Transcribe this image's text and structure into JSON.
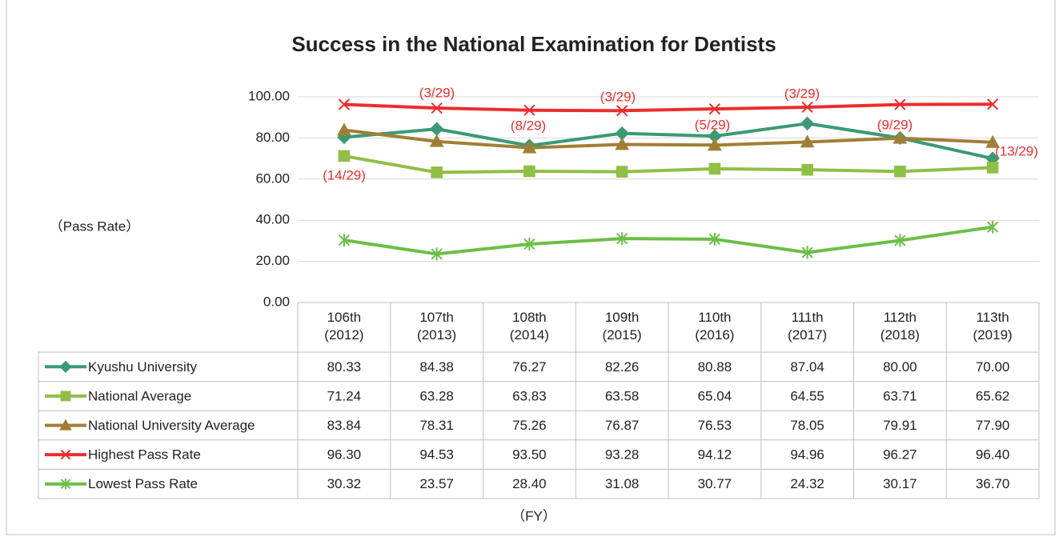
{
  "chart_data": {
    "type": "line",
    "title": "Success in the National Examination for Dentists",
    "y_label": "（Pass Rate）",
    "x_label": "（FY）",
    "categories": [
      "106th\n(2012)",
      "107th\n(2013)",
      "108th\n(2014)",
      "109th\n(2015)",
      "110th\n(2016)",
      "111th\n(2017)",
      "112th\n(2018)",
      "113th\n(2019)"
    ],
    "ylim": [
      0,
      100
    ],
    "yticks": [
      {
        "value": 0,
        "label": "0.00"
      },
      {
        "value": 20,
        "label": "20.00"
      },
      {
        "value": 40,
        "label": "40.00"
      },
      {
        "value": 60,
        "label": "60.00"
      },
      {
        "value": 80,
        "label": "80.00"
      },
      {
        "value": 100,
        "label": "100.00"
      }
    ],
    "grid": true,
    "annotations": [
      "(14/29)",
      "(3/29)",
      "(8/29)",
      "(3/29)",
      "(5/29)",
      "(3/29)",
      "(9/29)",
      "(13/29)"
    ],
    "annotation_color": "#ee2c2c",
    "series": [
      {
        "name": "Kyushu University",
        "color": "#3a9a73",
        "marker": "diamond",
        "values": [
          80.33,
          84.38,
          76.27,
          82.26,
          80.88,
          87.04,
          80.0,
          70.0
        ],
        "value_labels": [
          "80.33",
          "84.38",
          "76.27",
          "82.26",
          "80.88",
          "87.04",
          "80.00",
          "70.00"
        ]
      },
      {
        "name": "National Average",
        "color": "#8fbf45",
        "marker": "square",
        "values": [
          71.24,
          63.28,
          63.83,
          63.58,
          65.04,
          64.55,
          63.71,
          65.62
        ],
        "value_labels": [
          "71.24",
          "63.28",
          "63.83",
          "63.58",
          "65.04",
          "64.55",
          "63.71",
          "65.62"
        ]
      },
      {
        "name": "National University Average",
        "color": "#a07f35",
        "marker": "triangle",
        "values": [
          83.84,
          78.31,
          75.26,
          76.87,
          76.53,
          78.05,
          79.91,
          77.9
        ],
        "value_labels": [
          "83.84",
          "78.31",
          "75.26",
          "76.87",
          "76.53",
          "78.05",
          "79.91",
          "77.90"
        ]
      },
      {
        "name": "Highest Pass Rate",
        "color": "#ee2c2c",
        "marker": "x",
        "values": [
          96.3,
          94.53,
          93.5,
          93.28,
          94.12,
          94.96,
          96.27,
          96.4
        ],
        "value_labels": [
          "96.30",
          "94.53",
          "93.50",
          "93.28",
          "94.12",
          "94.96",
          "96.27",
          "96.40"
        ]
      },
      {
        "name": "Lowest Pass Rate",
        "color": "#6abf45",
        "marker": "asterisk",
        "values": [
          30.32,
          23.57,
          28.4,
          31.08,
          30.77,
          24.32,
          30.17,
          36.7
        ],
        "value_labels": [
          "30.32",
          "23.57",
          "28.40",
          "31.08",
          "30.77",
          "24.32",
          "30.17",
          "36.70"
        ]
      }
    ]
  }
}
